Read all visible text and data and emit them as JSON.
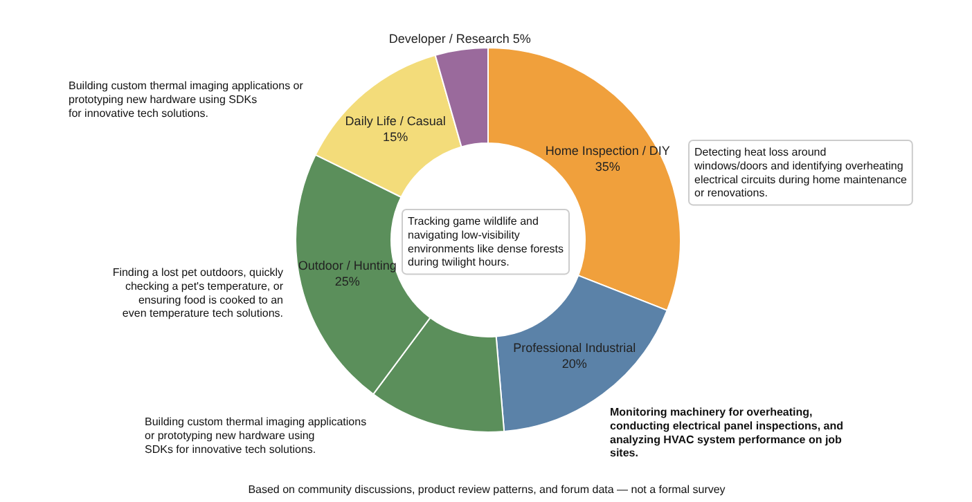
{
  "chart_data": {
    "type": "donut",
    "categories": [
      "Home Inspection / DIY",
      "Professional Industrial",
      null,
      "Outdoor / Hunting",
      "Daily Life / Casual",
      "Developer / Research"
    ],
    "values": [
      35,
      20,
      13,
      25,
      15,
      5
    ],
    "value_labels": [
      "35%",
      "20%",
      null,
      "25%",
      "15%",
      "5%"
    ],
    "colors": [
      "#f0a03c",
      "#5b82a8",
      "#5b8f5b",
      "#5b8f5b",
      "#f3dc7a",
      "#9a6a9c"
    ],
    "annotations": [
      "Building custom thermal imaging applications or\nprototyping new hardware using SDKs\nfor innovative tech solutions.",
      "Detecting heat loss around\nwindows/doors and identifying overheating\nelectrical circuits during home maintenance\nor renovations.",
      "Tracking game wildlife and\nnavigating low-visibility\nenvironments like dense forests\nduring twilight hours.",
      "Finding a lost pet outdoors, quickly\nchecking a pet's temperature, or\nensuring food is cooked to an\neven temperature tech solutions.",
      "Building custom thermal imaging applications\nor prototyping new hardware using\nSDKs for innovative tech solutions.",
      "Monitoring machinery for overheating,\nconducting electrical panel inspections, and\nanalyzing HVAC system performance on job\nsites.",
      "Based on community discussions, product review patterns, and forum data — not a formal survey"
    ]
  }
}
